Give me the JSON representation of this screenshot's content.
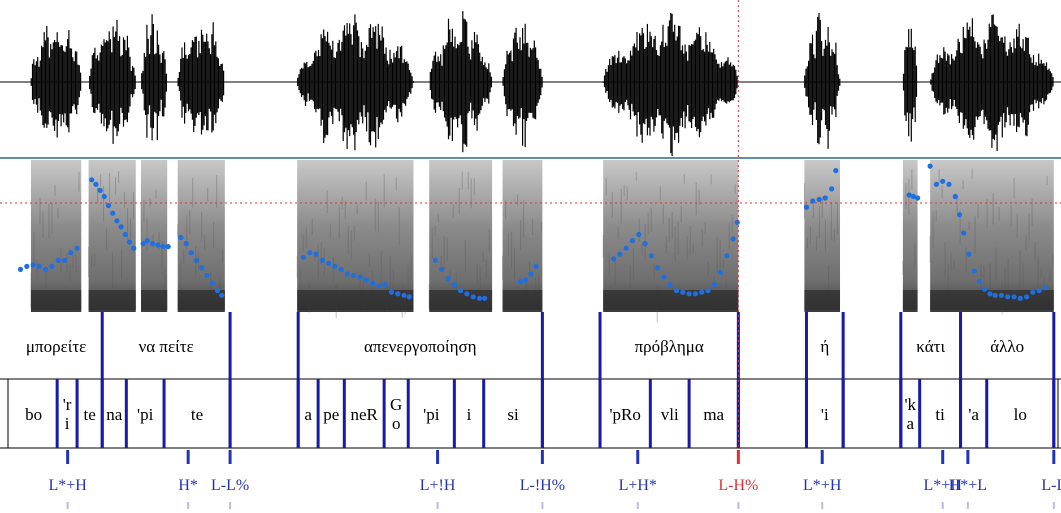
{
  "colors": {
    "boundary": "#1a1aa8",
    "pitch": "#1f6fe0",
    "tone": "#2233bb",
    "tone_highlight": "#e03030",
    "cursor": "#e03030",
    "separator": "#2a6a8a",
    "text": "#000000"
  },
  "words": [
    {
      "label": "μπορείτε",
      "start": 0.0,
      "end": 0.088
    },
    {
      "label": "να πείτε",
      "start": 0.088,
      "end": 0.21
    },
    {
      "label": "απενεργοποίηση",
      "start": 0.275,
      "end": 0.508
    },
    {
      "label": "πρόβλημα",
      "start": 0.563,
      "end": 0.695
    },
    {
      "label": "ή",
      "start": 0.76,
      "end": 0.795
    },
    {
      "label": "κάτι",
      "start": 0.85,
      "end": 0.907
    },
    {
      "label": "άλλο",
      "start": 0.907,
      "end": 0.996
    }
  ],
  "word_boundaries": [
    0.088,
    0.21,
    0.275,
    0.508,
    0.563,
    0.695,
    0.76,
    0.795,
    0.85,
    0.907,
    0.996
  ],
  "syllables": [
    {
      "label": "bo",
      "start": 0.0,
      "end": 0.045
    },
    {
      "label": "'r\ni",
      "start": 0.045,
      "end": 0.064
    },
    {
      "label": "te",
      "start": 0.064,
      "end": 0.088
    },
    {
      "label": "na",
      "start": 0.088,
      "end": 0.111
    },
    {
      "label": "'pi",
      "start": 0.111,
      "end": 0.147
    },
    {
      "label": "te",
      "start": 0.147,
      "end": 0.21
    },
    {
      "label": "a",
      "start": 0.275,
      "end": 0.294
    },
    {
      "label": "pe",
      "start": 0.294,
      "end": 0.319
    },
    {
      "label": "neR",
      "start": 0.319,
      "end": 0.357
    },
    {
      "label": "G\no",
      "start": 0.357,
      "end": 0.38
    },
    {
      "label": "'pi",
      "start": 0.38,
      "end": 0.424
    },
    {
      "label": "i",
      "start": 0.424,
      "end": 0.452
    },
    {
      "label": "si",
      "start": 0.452,
      "end": 0.508
    },
    {
      "label": "'pRo",
      "start": 0.563,
      "end": 0.611
    },
    {
      "label": "vli",
      "start": 0.611,
      "end": 0.648
    },
    {
      "label": "ma",
      "start": 0.648,
      "end": 0.695
    },
    {
      "label": "'i",
      "start": 0.76,
      "end": 0.795
    },
    {
      "label": "'k\na",
      "start": 0.85,
      "end": 0.868
    },
    {
      "label": "ti",
      "start": 0.868,
      "end": 0.907
    },
    {
      "label": "'a",
      "start": 0.907,
      "end": 0.932
    },
    {
      "label": "lo",
      "start": 0.932,
      "end": 0.996
    }
  ],
  "syllable_boundaries": [
    0.045,
    0.064,
    0.088,
    0.111,
    0.147,
    0.21,
    0.275,
    0.294,
    0.319,
    0.357,
    0.38,
    0.424,
    0.452,
    0.508,
    0.563,
    0.611,
    0.648,
    0.695,
    0.76,
    0.795,
    0.85,
    0.868,
    0.907,
    0.932,
    0.996
  ],
  "tones": [
    {
      "label": "L*+H",
      "time": 0.055,
      "highlight": false
    },
    {
      "label": "H*",
      "time": 0.17,
      "highlight": false
    },
    {
      "label": "L-L%",
      "time": 0.21,
      "highlight": false
    },
    {
      "label": "L+!H",
      "time": 0.408,
      "highlight": false
    },
    {
      "label": "L-!H%",
      "time": 0.508,
      "highlight": false
    },
    {
      "label": "L+H*",
      "time": 0.599,
      "highlight": false
    },
    {
      "label": "L-H%",
      "time": 0.695,
      "highlight": true
    },
    {
      "label": "L*+H",
      "time": 0.775,
      "highlight": false
    },
    {
      "label": "L*+H",
      "time": 0.89,
      "highlight": false
    },
    {
      "label": "H*+L",
      "time": 0.914,
      "highlight": false
    },
    {
      "label": "L-L",
      "time": 0.996,
      "highlight": false
    }
  ],
  "cursor_time": 0.695,
  "pitch_segments": [
    [
      [
        0.01,
        0.72
      ],
      [
        0.016,
        0.7
      ],
      [
        0.022,
        0.69
      ],
      [
        0.028,
        0.7
      ],
      [
        0.034,
        0.72
      ],
      [
        0.04,
        0.7
      ],
      [
        0.046,
        0.66
      ],
      [
        0.052,
        0.66
      ],
      [
        0.058,
        0.61
      ],
      [
        0.064,
        0.58
      ]
    ],
    [
      [
        0.078,
        0.13
      ],
      [
        0.082,
        0.16
      ],
      [
        0.086,
        0.2
      ],
      [
        0.09,
        0.24
      ],
      [
        0.094,
        0.3
      ],
      [
        0.098,
        0.35
      ],
      [
        0.102,
        0.4
      ],
      [
        0.106,
        0.44
      ],
      [
        0.11,
        0.49
      ],
      [
        0.114,
        0.54
      ],
      [
        0.118,
        0.58
      ]
    ],
    [
      [
        0.127,
        0.55
      ],
      [
        0.131,
        0.53
      ],
      [
        0.136,
        0.55
      ],
      [
        0.141,
        0.56
      ],
      [
        0.146,
        0.57
      ],
      [
        0.151,
        0.57
      ]
    ],
    [
      [
        0.163,
        0.51
      ],
      [
        0.168,
        0.55
      ],
      [
        0.173,
        0.61
      ],
      [
        0.178,
        0.66
      ],
      [
        0.183,
        0.71
      ],
      [
        0.188,
        0.76
      ],
      [
        0.193,
        0.81
      ],
      [
        0.198,
        0.86
      ],
      [
        0.202,
        0.89
      ]
    ],
    [
      [
        0.28,
        0.64
      ],
      [
        0.286,
        0.61
      ],
      [
        0.292,
        0.62
      ],
      [
        0.298,
        0.66
      ],
      [
        0.304,
        0.68
      ],
      [
        0.31,
        0.7
      ],
      [
        0.316,
        0.72
      ],
      [
        0.322,
        0.75
      ],
      [
        0.328,
        0.76
      ],
      [
        0.334,
        0.77
      ],
      [
        0.34,
        0.79
      ],
      [
        0.346,
        0.81
      ],
      [
        0.352,
        0.83
      ],
      [
        0.358,
        0.82
      ],
      [
        0.364,
        0.87
      ],
      [
        0.37,
        0.88
      ],
      [
        0.376,
        0.89
      ],
      [
        0.381,
        0.9
      ]
    ],
    [
      [
        0.406,
        0.66
      ],
      [
        0.412,
        0.72
      ],
      [
        0.418,
        0.78
      ],
      [
        0.424,
        0.82
      ],
      [
        0.43,
        0.86
      ],
      [
        0.436,
        0.88
      ],
      [
        0.442,
        0.9
      ],
      [
        0.448,
        0.91
      ],
      [
        0.453,
        0.91
      ]
    ],
    [
      [
        0.487,
        0.8
      ],
      [
        0.492,
        0.79
      ],
      [
        0.497,
        0.75
      ],
      [
        0.502,
        0.7
      ]
    ],
    [
      [
        0.576,
        0.65
      ],
      [
        0.582,
        0.62
      ],
      [
        0.588,
        0.58
      ],
      [
        0.594,
        0.53
      ],
      [
        0.6,
        0.49
      ],
      [
        0.606,
        0.55
      ],
      [
        0.612,
        0.63
      ],
      [
        0.618,
        0.71
      ],
      [
        0.624,
        0.77
      ],
      [
        0.63,
        0.82
      ],
      [
        0.636,
        0.86
      ],
      [
        0.642,
        0.87
      ],
      [
        0.648,
        0.88
      ],
      [
        0.654,
        0.88
      ],
      [
        0.66,
        0.87
      ],
      [
        0.666,
        0.86
      ],
      [
        0.672,
        0.82
      ],
      [
        0.678,
        0.74
      ],
      [
        0.684,
        0.63
      ],
      [
        0.69,
        0.52
      ],
      [
        0.694,
        0.41
      ]
    ],
    [
      [
        0.76,
        0.31
      ],
      [
        0.766,
        0.27
      ],
      [
        0.772,
        0.26
      ],
      [
        0.778,
        0.25
      ],
      [
        0.784,
        0.19
      ],
      [
        0.788,
        0.07
      ]
    ],
    [
      [
        0.858,
        0.23
      ],
      [
        0.862,
        0.24
      ],
      [
        0.866,
        0.25
      ]
    ],
    [
      [
        0.878,
        0.04
      ],
      [
        0.884,
        0.16
      ],
      [
        0.89,
        0.14
      ],
      [
        0.896,
        0.16
      ],
      [
        0.902,
        0.24
      ],
      [
        0.906,
        0.36
      ],
      [
        0.91,
        0.48
      ],
      [
        0.915,
        0.62
      ],
      [
        0.92,
        0.73
      ],
      [
        0.925,
        0.8
      ],
      [
        0.93,
        0.85
      ],
      [
        0.935,
        0.88
      ],
      [
        0.94,
        0.89
      ],
      [
        0.946,
        0.89
      ],
      [
        0.952,
        0.9
      ],
      [
        0.958,
        0.9
      ],
      [
        0.964,
        0.91
      ],
      [
        0.97,
        0.9
      ],
      [
        0.976,
        0.87
      ],
      [
        0.982,
        0.86
      ],
      [
        0.988,
        0.84
      ]
    ]
  ],
  "voiced_regions": [
    {
      "start": 0.02,
      "end": 0.068
    },
    {
      "start": 0.075,
      "end": 0.12
    },
    {
      "start": 0.125,
      "end": 0.15
    },
    {
      "start": 0.16,
      "end": 0.205
    },
    {
      "start": 0.274,
      "end": 0.385
    },
    {
      "start": 0.4,
      "end": 0.46
    },
    {
      "start": 0.47,
      "end": 0.508
    },
    {
      "start": 0.566,
      "end": 0.695
    },
    {
      "start": 0.758,
      "end": 0.792
    },
    {
      "start": 0.852,
      "end": 0.866
    },
    {
      "start": 0.878,
      "end": 0.996
    }
  ]
}
